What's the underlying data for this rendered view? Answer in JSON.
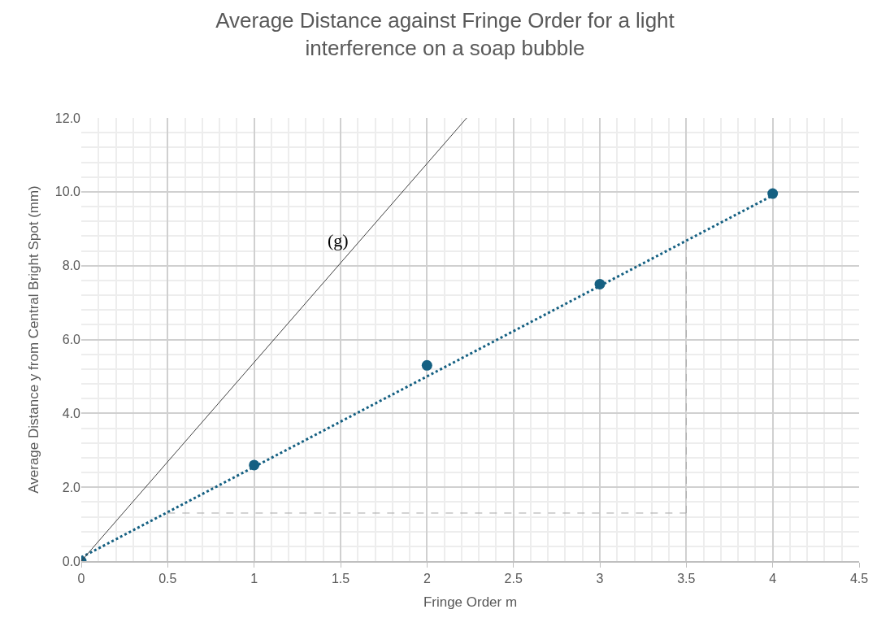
{
  "chart_data": {
    "type": "scatter",
    "title": "Average Distance against Fringe Order for a light interference on a soap bubble",
    "xlabel": "Fringe Order m",
    "ylabel": "Average Distance y from Central Bright Spot (mm)",
    "x": [
      0,
      1,
      2,
      3,
      4
    ],
    "series": [
      {
        "color": "#156082",
        "marker": "circle",
        "values": [
          0,
          2.6,
          5.3,
          7.5,
          9.95
        ]
      },
      {
        "type": "line",
        "color": "#156082",
        "line_style": "dotted",
        "marker": "none",
        "x": [
          0,
          4
        ],
        "values": [
          0.1,
          9.9
        ]
      },
      {
        "type": "line",
        "color": "#404040",
        "line_style": "solid",
        "marker": "none",
        "x": [
          0,
          2.23
        ],
        "values": [
          0,
          12
        ]
      },
      {
        "type": "line",
        "color": "#a6a6a6",
        "line_style": "dashed",
        "marker": "none",
        "x": [
          0.5,
          3.5
        ],
        "values": [
          1.3,
          1.3
        ]
      },
      {
        "type": "line",
        "color": "#a6a6a6",
        "line_style": "dashed",
        "marker": "none",
        "x": [
          3.5,
          3.5
        ],
        "values": [
          1.3,
          8.75
        ]
      }
    ],
    "annotations": [
      "(g)"
    ],
    "xlim": [
      0,
      4.5
    ],
    "xticks": [
      0,
      0.5,
      1,
      1.5,
      2,
      2.5,
      3,
      3.5,
      4,
      4.5
    ],
    "ylim": [
      0,
      12
    ],
    "yticks": [
      {
        "value": 0,
        "label": "0.0"
      },
      {
        "value": 2,
        "label": "2.0"
      },
      {
        "value": 4,
        "label": "4.0"
      },
      {
        "value": 6,
        "label": "6.0"
      },
      {
        "value": 8,
        "label": "8.0"
      },
      {
        "value": 10,
        "label": "10.0"
      },
      {
        "value": 12,
        "label": "12.0"
      }
    ],
    "grid": true
  }
}
